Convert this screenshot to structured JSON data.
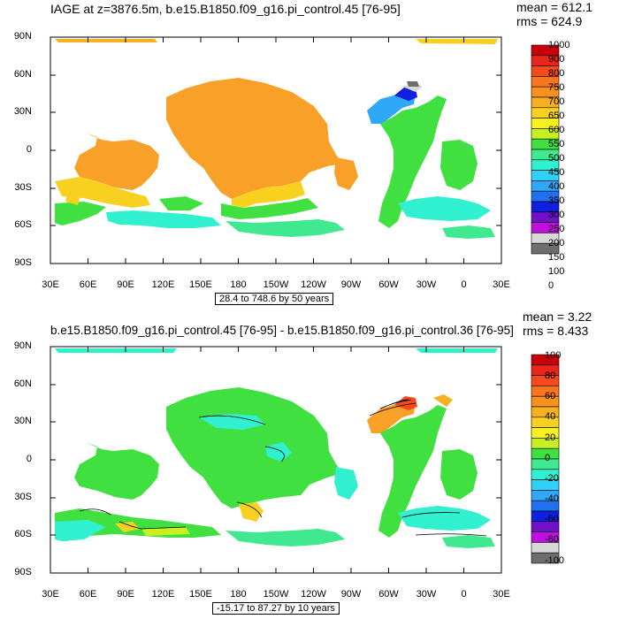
{
  "panel1": {
    "title": "IAGE at z=3876.5m, b.e15.B1850.f09_g16.pi_control.45 [76-95]",
    "mean": "mean = 612.1",
    "rms": "rms = 624.9",
    "range": "28.4 to 748.6 by 50 years",
    "lat_labels": [
      "90N",
      "60N",
      "30N",
      "0",
      "30S",
      "60S",
      "90S"
    ],
    "lon_labels": [
      "30E",
      "60E",
      "90E",
      "120E",
      "150E",
      "180",
      "150W",
      "120W",
      "90W",
      "60W",
      "30W",
      "0",
      "30E"
    ],
    "colorbar_labels": [
      "1000",
      "900",
      "800",
      "750",
      "700",
      "650",
      "600",
      "550",
      "500",
      "450",
      "400",
      "350",
      "300",
      "250",
      "200",
      "150",
      "100",
      "0"
    ],
    "colorbar_colors": [
      "#c8000a",
      "#e8261c",
      "#f44a1e",
      "#f8741f",
      "#f8921f",
      "#f8b020",
      "#f8d020",
      "#f8f020",
      "#c8f020",
      "#40e040",
      "#40e890",
      "#30f0d0",
      "#30d0f8",
      "#30a8f8",
      "#2070f0",
      "#1020e0",
      "#7010c8",
      "#c010e0",
      "#d8d8d8",
      "#6e6e6e"
    ]
  },
  "panel2": {
    "title": "b.e15.B1850.f09_g16.pi_control.45 [76-95] - b.e15.B1850.f09_g16.pi_control.36 [76-95]",
    "mean": "mean = 3.22",
    "rms": "rms = 8.433",
    "range": "-15.17 to 87.27 by 10 years",
    "lat_labels": [
      "90N",
      "60N",
      "30N",
      "0",
      "30S",
      "60S",
      "90S"
    ],
    "lon_labels": [
      "30E",
      "60E",
      "90E",
      "120E",
      "150E",
      "180",
      "150W",
      "120W",
      "90W",
      "60W",
      "30W",
      "0",
      "30E"
    ],
    "colorbar_labels": [
      "100",
      "80",
      "60",
      "40",
      "20",
      "0",
      "-20",
      "-40",
      "-60",
      "-80",
      "-100"
    ],
    "colorbar_colors": [
      "#c8000a",
      "#e8261c",
      "#f44a1e",
      "#f8741f",
      "#f8921f",
      "#f8b020",
      "#f8d020",
      "#f8f020",
      "#c8f020",
      "#40e040",
      "#40e890",
      "#30f0d0",
      "#30d0f8",
      "#30a8f8",
      "#2070f0",
      "#1020e0",
      "#7010c8",
      "#c010e0",
      "#d8d8d8",
      "#6e6e6e"
    ]
  }
}
